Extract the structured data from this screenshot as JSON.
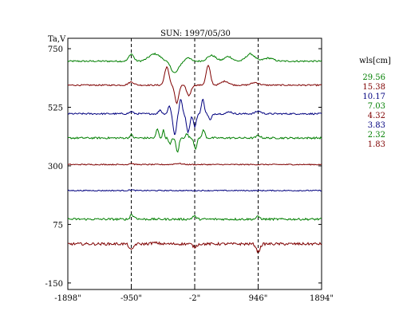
{
  "chart_data": {
    "type": "line",
    "title": "SUN: 1997/05/30",
    "ylabel": "Ta,V",
    "xlabel": "",
    "xlim": [
      -1898,
      1894
    ],
    "ylim": [
      -175,
      790
    ],
    "x_ticks": [
      {
        "value": -1898,
        "label": "-1898\""
      },
      {
        "value": -950,
        "label": "-950\""
      },
      {
        "value": -2,
        "label": "-2\""
      },
      {
        "value": 946,
        "label": "946\""
      },
      {
        "value": 1894,
        "label": "1894\""
      }
    ],
    "y_ticks": [
      {
        "value": 750,
        "label": "750"
      },
      {
        "value": 525,
        "label": "525"
      },
      {
        "value": 300,
        "label": "300"
      },
      {
        "value": 75,
        "label": "75"
      },
      {
        "value": -150,
        "label": "-150"
      }
    ],
    "vlines": [
      -950,
      -2,
      946
    ],
    "grid": false,
    "legend": {
      "title": "wls[cm]",
      "placement": "right"
    },
    "series": [
      {
        "name": "29.56",
        "color": "#007f00",
        "baseline": 702,
        "noise": 3,
        "features": [
          [
            -950,
            28,
            50
          ],
          [
            -600,
            28,
            120
          ],
          [
            -300,
            -45,
            80
          ],
          [
            -100,
            15,
            50
          ],
          [
            250,
            22,
            90
          ],
          [
            500,
            18,
            80
          ],
          [
            830,
            28,
            90
          ],
          [
            1100,
            12,
            100
          ]
        ]
      },
      {
        "name": "15.38",
        "color": "#7f0000",
        "baseline": 610,
        "noise": 2.5,
        "features": [
          [
            -950,
            12,
            60
          ],
          [
            -420,
            70,
            45
          ],
          [
            -270,
            -70,
            40
          ],
          [
            -90,
            -40,
            45
          ],
          [
            200,
            75,
            45
          ],
          [
            450,
            15,
            80
          ],
          [
            900,
            10,
            80
          ]
        ]
      },
      {
        "name": "10.17",
        "color": "#00007f",
        "baseline": 500,
        "noise": 3,
        "features": [
          [
            -950,
            8,
            40
          ],
          [
            -520,
            15,
            30
          ],
          [
            -380,
            30,
            30
          ],
          [
            -300,
            -80,
            35
          ],
          [
            -210,
            55,
            30
          ],
          [
            -100,
            -70,
            35
          ],
          [
            0,
            -50,
            30
          ],
          [
            120,
            55,
            30
          ],
          [
            230,
            -25,
            30
          ],
          [
            520,
            8,
            50
          ],
          [
            950,
            10,
            60
          ]
        ]
      },
      {
        "name": "7.03",
        "color": "#007f00",
        "baseline": 407,
        "noise": 3.5,
        "features": [
          [
            -950,
            12,
            30
          ],
          [
            -560,
            35,
            25
          ],
          [
            -470,
            30,
            20
          ],
          [
            -370,
            -25,
            25
          ],
          [
            -260,
            -55,
            30
          ],
          [
            -120,
            15,
            30
          ],
          [
            10,
            -40,
            30
          ],
          [
            130,
            30,
            30
          ],
          [
            950,
            10,
            40
          ]
        ]
      },
      {
        "name": "4.32",
        "color": "#7f0000",
        "baseline": 305,
        "noise": 2,
        "features": [
          [
            -950,
            5,
            40
          ],
          [
            -250,
            4,
            80
          ]
        ]
      },
      {
        "name": "3.83",
        "color": "#00007f",
        "baseline": 205,
        "noise": 2,
        "features": [
          [
            -950,
            3,
            40
          ]
        ]
      },
      {
        "name": "2.32",
        "color": "#007f00",
        "baseline": 95,
        "noise": 4,
        "features": [
          [
            -950,
            18,
            25
          ],
          [
            -900,
            8,
            40
          ],
          [
            -10,
            12,
            40
          ],
          [
            946,
            10,
            40
          ]
        ]
      },
      {
        "name": "1.83",
        "color": "#7f0000",
        "baseline": 0,
        "noise": 5,
        "features": [
          [
            -950,
            -25,
            40
          ],
          [
            -600,
            4,
            80
          ],
          [
            -2,
            -12,
            40
          ],
          [
            946,
            -30,
            40
          ]
        ]
      }
    ]
  }
}
